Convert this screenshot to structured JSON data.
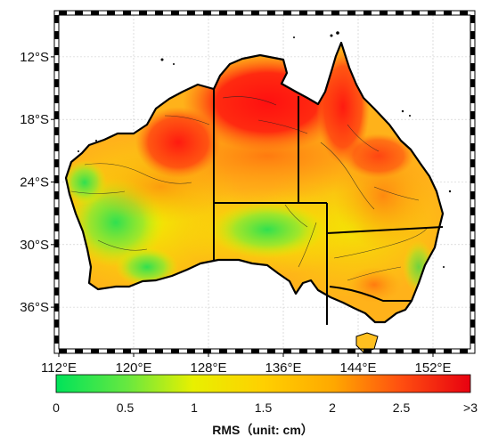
{
  "map": {
    "x_ticks": [
      {
        "lon": 112,
        "label": "112°E"
      },
      {
        "lon": 120,
        "label": "120°E"
      },
      {
        "lon": 128,
        "label": "128°E"
      },
      {
        "lon": 136,
        "label": "136°E"
      },
      {
        "lon": 144,
        "label": "144°E"
      },
      {
        "lon": 152,
        "label": "152°E"
      }
    ],
    "y_ticks": [
      {
        "lat": -12,
        "label": "12°S"
      },
      {
        "lat": -18,
        "label": "18°S"
      },
      {
        "lat": -24,
        "label": "24°S"
      },
      {
        "lat": -30,
        "label": "30°S"
      },
      {
        "lat": -36,
        "label": "36°S"
      }
    ],
    "lon_range": [
      112,
      156
    ],
    "lat_range": [
      -40,
      -8
    ],
    "grid": true,
    "border_style": "checkered-frame"
  },
  "colorbar": {
    "title": "RMS（unit: cm）",
    "ticks": [
      {
        "value": 0,
        "label": "0"
      },
      {
        "value": 0.5,
        "label": "0.5"
      },
      {
        "value": 1,
        "label": "1"
      },
      {
        "value": 1.5,
        "label": "1.5"
      },
      {
        "value": 2,
        "label": "2"
      },
      {
        "value": 2.5,
        "label": "2.5"
      },
      {
        "value": 3,
        "label": ">3"
      }
    ],
    "range": [
      0,
      3
    ],
    "colors": [
      "#00e060",
      "#f0f000",
      "#ffa000",
      "#ff2020",
      "#e00000"
    ]
  }
}
